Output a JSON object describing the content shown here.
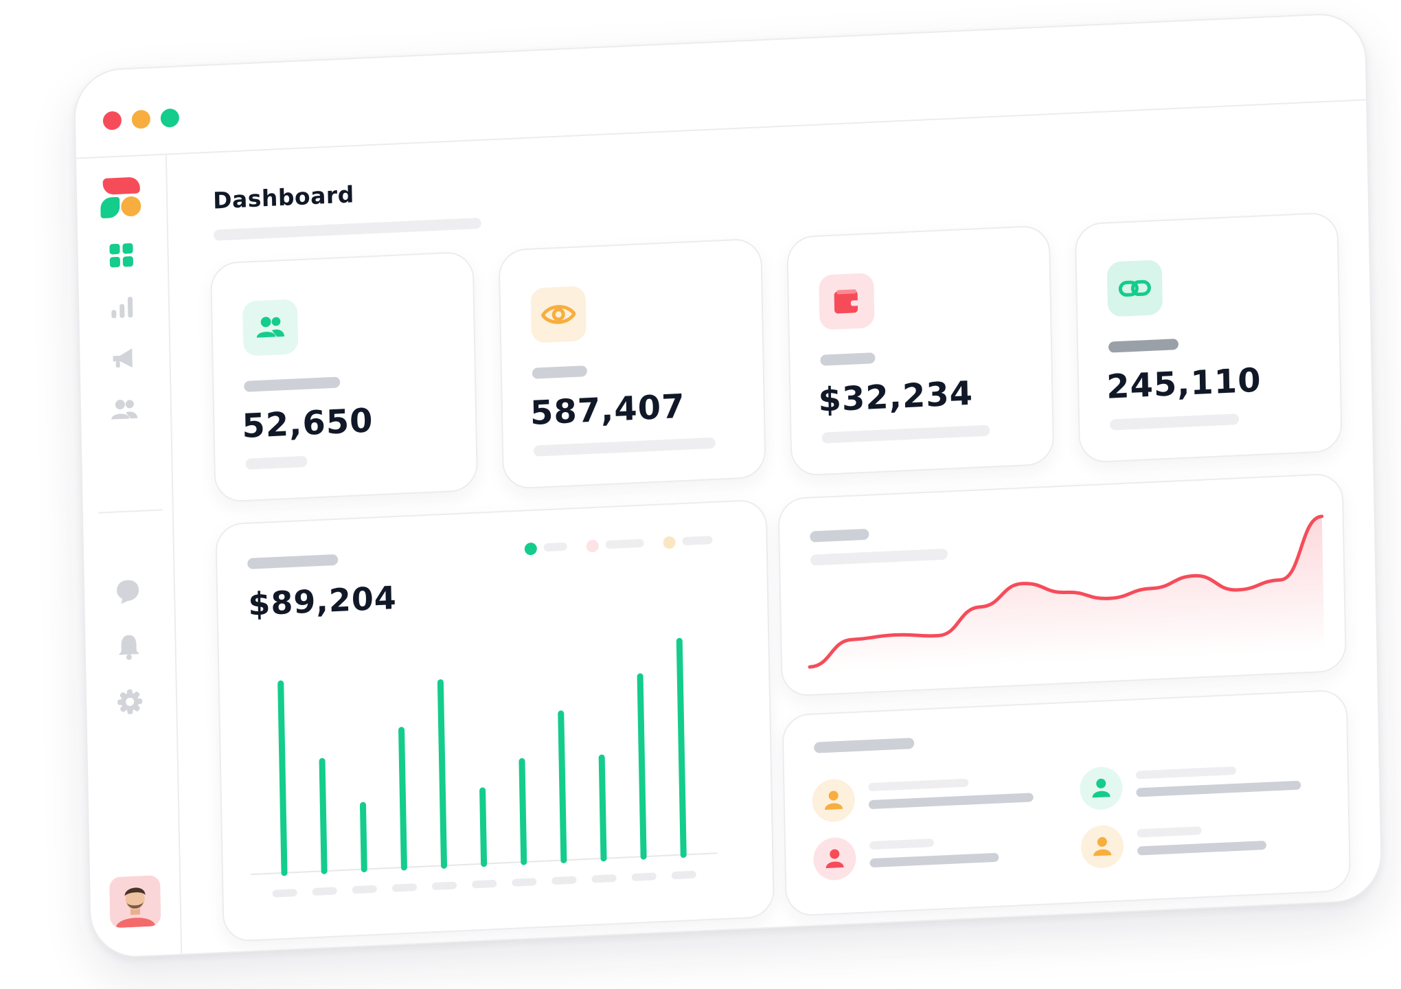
{
  "window": {
    "controls": [
      "close",
      "minimize",
      "maximize"
    ]
  },
  "sidebar": {
    "logo": "brand-logo",
    "items": [
      {
        "icon": "grid-icon",
        "active": true
      },
      {
        "icon": "bar-chart-icon",
        "active": false
      },
      {
        "icon": "megaphone-icon",
        "active": false
      },
      {
        "icon": "users-icon",
        "active": false
      }
    ],
    "bottom_items": [
      {
        "icon": "chat-icon"
      },
      {
        "icon": "bell-icon"
      },
      {
        "icon": "gear-icon"
      }
    ],
    "avatar": "user-avatar"
  },
  "header": {
    "title": "Dashboard"
  },
  "stats": [
    {
      "icon": "users-icon",
      "value": "52,650",
      "accent": "#14cc8c",
      "tint": "#e3f8f0"
    },
    {
      "icon": "eye-icon",
      "value": "587,407",
      "accent": "#f7ae3e",
      "tint": "#fdf0dc"
    },
    {
      "icon": "wallet-icon",
      "value": "$32,234",
      "accent": "#f64c5a",
      "tint": "#fde3e5"
    },
    {
      "icon": "link-icon",
      "value": "245,110",
      "accent": "#14cc8c",
      "tint": "#d7f5ea"
    }
  ],
  "revenue": {
    "value": "$89,204",
    "legend_colors": [
      "#14cc8c",
      "#fde3e5",
      "#fbe6c4"
    ]
  },
  "chart_data": [
    {
      "type": "bar",
      "title": "",
      "categories": [
        "",
        "",
        "",
        "",
        "",
        "",
        "",
        "",
        "",
        "",
        ""
      ],
      "series": [
        {
          "color": "#14cc8c",
          "values": [
            62,
            36,
            21,
            45,
            60,
            24,
            33,
            48,
            33,
            59,
            70
          ]
        }
      ],
      "ylim": [
        0,
        72
      ],
      "grid": false
    },
    {
      "type": "area",
      "title": "",
      "x": [
        0,
        1,
        2,
        3,
        4,
        5,
        6,
        7,
        8,
        9,
        10,
        11,
        12
      ],
      "series": [
        {
          "color": "#f64c5a",
          "values": [
            5,
            24,
            26,
            24,
            44,
            60,
            52,
            46,
            52,
            60,
            48,
            54,
            100
          ]
        }
      ],
      "ylim": [
        0,
        100
      ],
      "grid": false
    }
  ],
  "people": [
    {
      "icon": "user-icon",
      "color": "#f7ae3e",
      "tint": "#fdf0dc"
    },
    {
      "icon": "user-icon",
      "color": "#f64c5a",
      "tint": "#fde3e5"
    },
    {
      "icon": "user-icon",
      "color": "#14cc8c",
      "tint": "#e3f8f0"
    },
    {
      "icon": "user-icon",
      "color": "#f7ae3e",
      "tint": "#fdf0dc"
    }
  ]
}
